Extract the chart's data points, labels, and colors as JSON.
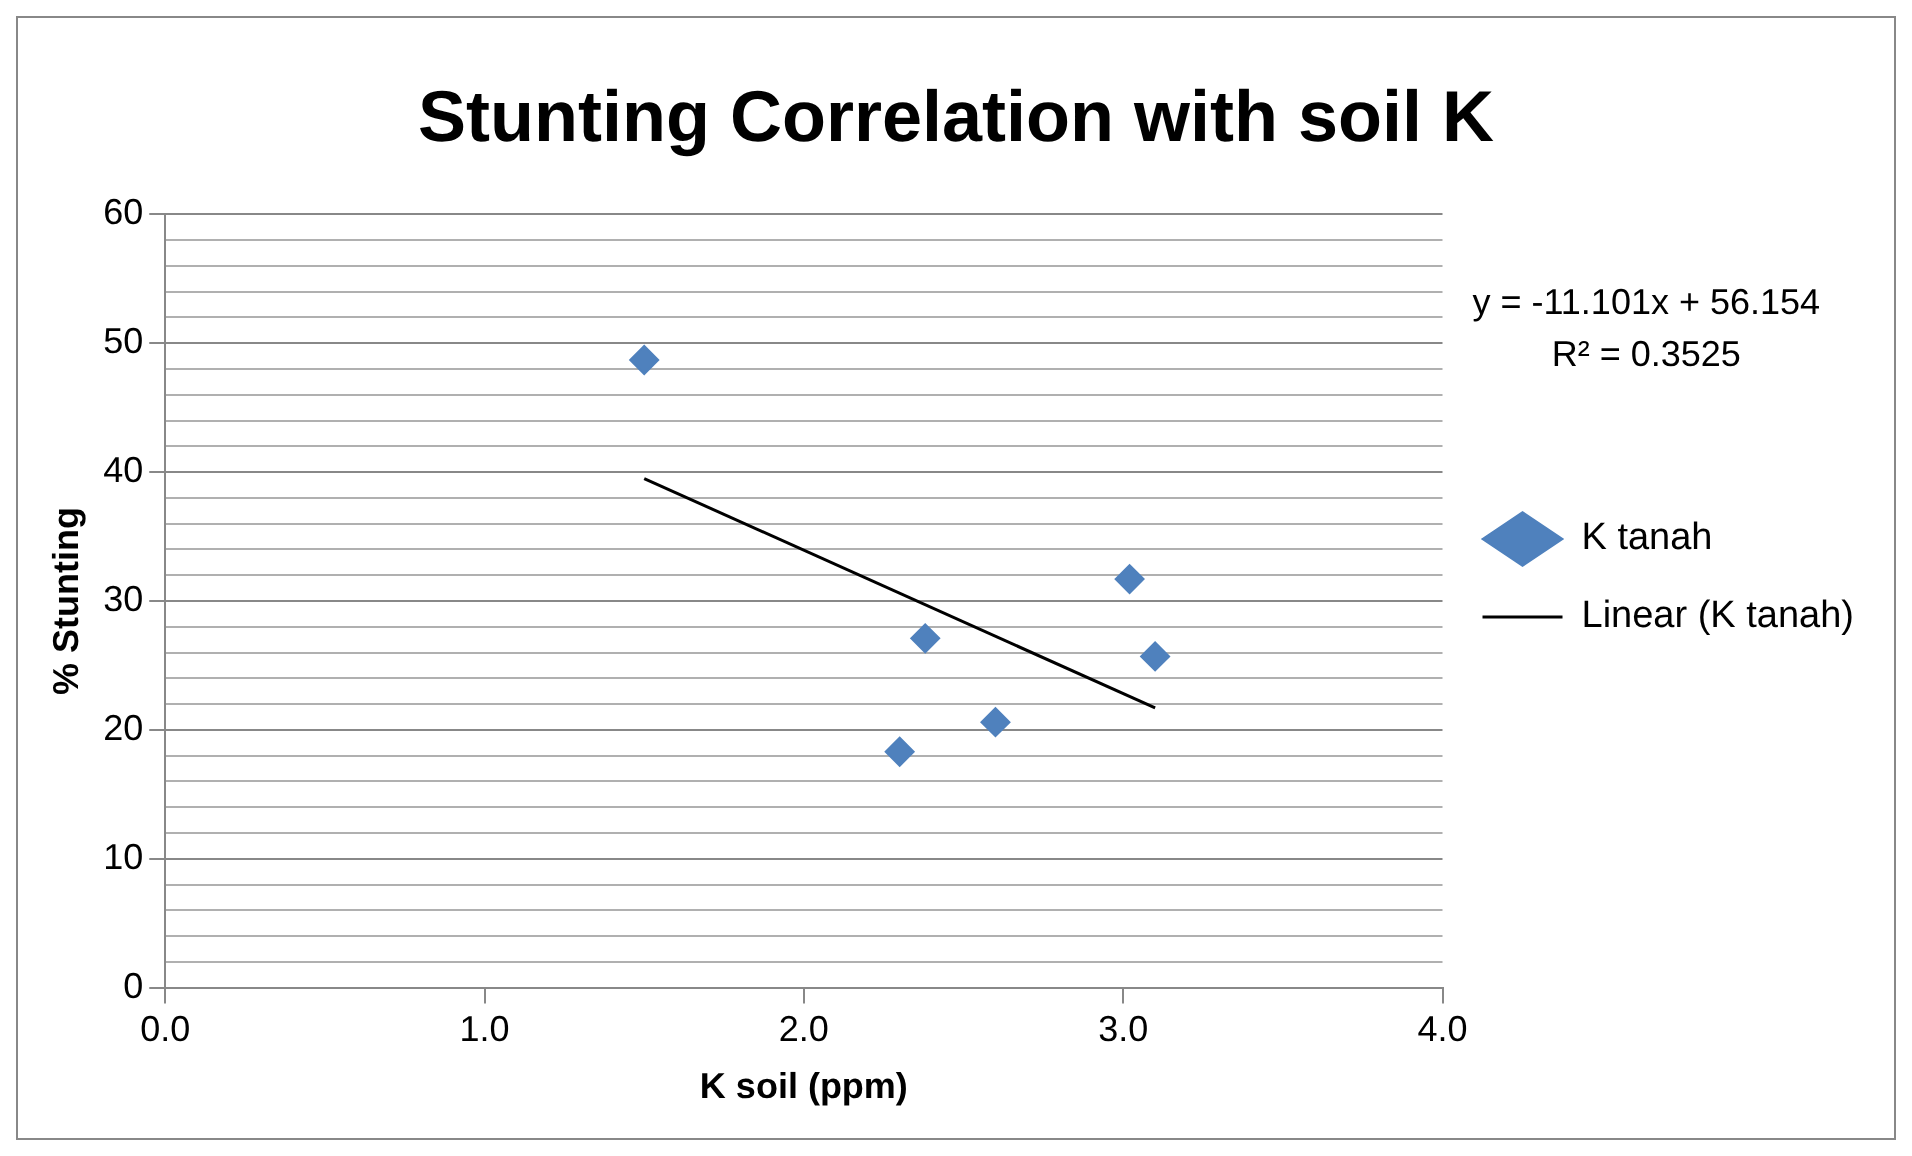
{
  "chart_data": {
    "type": "scatter",
    "title": "Stunting Correlation with soil K",
    "xlabel": "K soil (ppm)",
    "ylabel": "% Stunting",
    "x": [
      1.5,
      2.38,
      2.3,
      2.6,
      3.02,
      3.1
    ],
    "series": [
      {
        "name": "K tanah",
        "type": "scatter",
        "marker": "diamond",
        "color": "#4f81bd",
        "values": [
          48.7,
          27.1,
          18.3,
          20.6,
          31.7,
          25.7
        ]
      },
      {
        "name": "Linear (K tanah)",
        "type": "line",
        "marker": "none",
        "color": "#000000",
        "x": [
          1.5,
          3.1
        ],
        "values": [
          39.5,
          21.7
        ]
      }
    ],
    "xlim": [
      0,
      4
    ],
    "xticks": [
      {
        "value": 0,
        "label": "0.0"
      },
      {
        "value": 1,
        "label": "1.0"
      },
      {
        "value": 2,
        "label": "2.0"
      },
      {
        "value": 3,
        "label": "3.0"
      },
      {
        "value": 4,
        "label": "4.0"
      }
    ],
    "ylim": [
      0,
      60
    ],
    "yticks": [
      0,
      {
        "value": 2,
        "label": null
      },
      {
        "value": 4,
        "label": null
      },
      {
        "value": 6,
        "label": null
      },
      {
        "value": 8,
        "label": null
      },
      10,
      {
        "value": 12,
        "label": null
      },
      {
        "value": 14,
        "label": null
      },
      {
        "value": 16,
        "label": null
      },
      {
        "value": 18,
        "label": null
      },
      20,
      {
        "value": 22,
        "label": null
      },
      {
        "value": 24,
        "label": null
      },
      {
        "value": 26,
        "label": null
      },
      {
        "value": 28,
        "label": null
      },
      30,
      {
        "value": 32,
        "label": null
      },
      {
        "value": 34,
        "label": null
      },
      {
        "value": 36,
        "label": null
      },
      {
        "value": 38,
        "label": null
      },
      40,
      {
        "value": 42,
        "label": null
      },
      {
        "value": 44,
        "label": null
      },
      {
        "value": 46,
        "label": null
      },
      {
        "value": 48,
        "label": null
      },
      50,
      {
        "value": 52,
        "label": null
      },
      {
        "value": 54,
        "label": null
      },
      {
        "value": 56,
        "label": null
      },
      {
        "value": 58,
        "label": null
      },
      60
    ],
    "grid": "y",
    "legend": "right",
    "annotations": [
      "y = -11.101x + 56.154",
      "R² = 0.3525"
    ]
  }
}
